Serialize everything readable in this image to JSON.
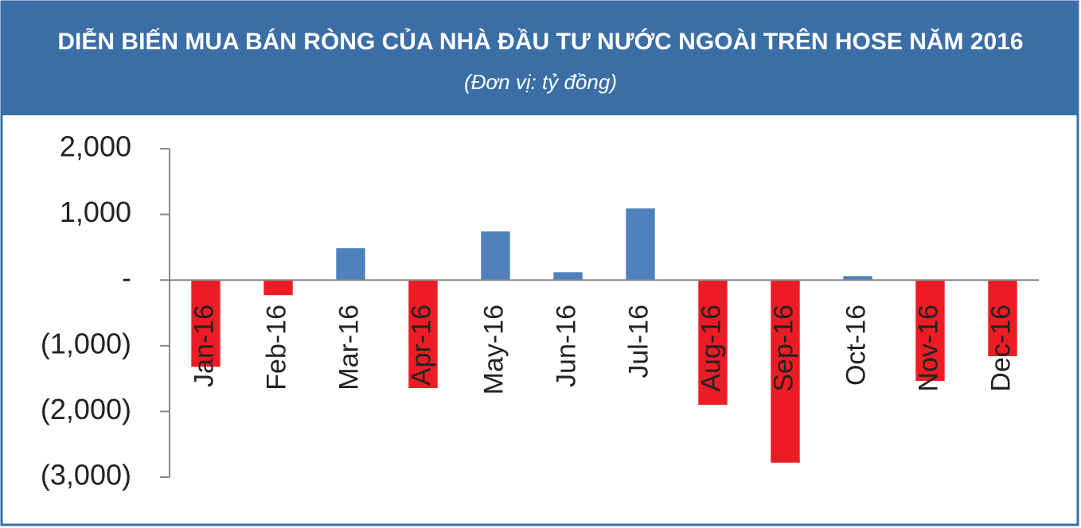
{
  "chart_data": {
    "type": "bar",
    "title": "DIỄN BIẾN MUA BÁN RÒNG CỦA NHÀ ĐẦU TƯ NƯỚC NGOÀI TRÊN HOSE NĂM 2016",
    "subtitle": "(Đơn vị: tỷ đồng)",
    "categories": [
      "Jan-16",
      "Feb-16",
      "Mar-16",
      "Apr-16",
      "May-16",
      "Jun-16",
      "Jul-16",
      "Aug-16",
      "Sep-16",
      "Oct-16",
      "Nov-16",
      "Dec-16"
    ],
    "values": [
      -1320,
      -230,
      485,
      -1645,
      740,
      120,
      1090,
      -1900,
      -2780,
      60,
      -1535,
      -1160
    ],
    "positive_color": "#4f81bd",
    "negative_color": "#ed1c24",
    "ylim": [
      -3000,
      2000
    ],
    "yticks": [
      {
        "value": 2000,
        "label": "2,000"
      },
      {
        "value": 1000,
        "label": "1,000"
      },
      {
        "value": 0,
        "label": "-"
      },
      {
        "value": -1000,
        "label": "(1,000)"
      },
      {
        "value": -2000,
        "label": "(2,000)"
      },
      {
        "value": -3000,
        "label": "(3,000)"
      }
    ],
    "grid": false
  }
}
